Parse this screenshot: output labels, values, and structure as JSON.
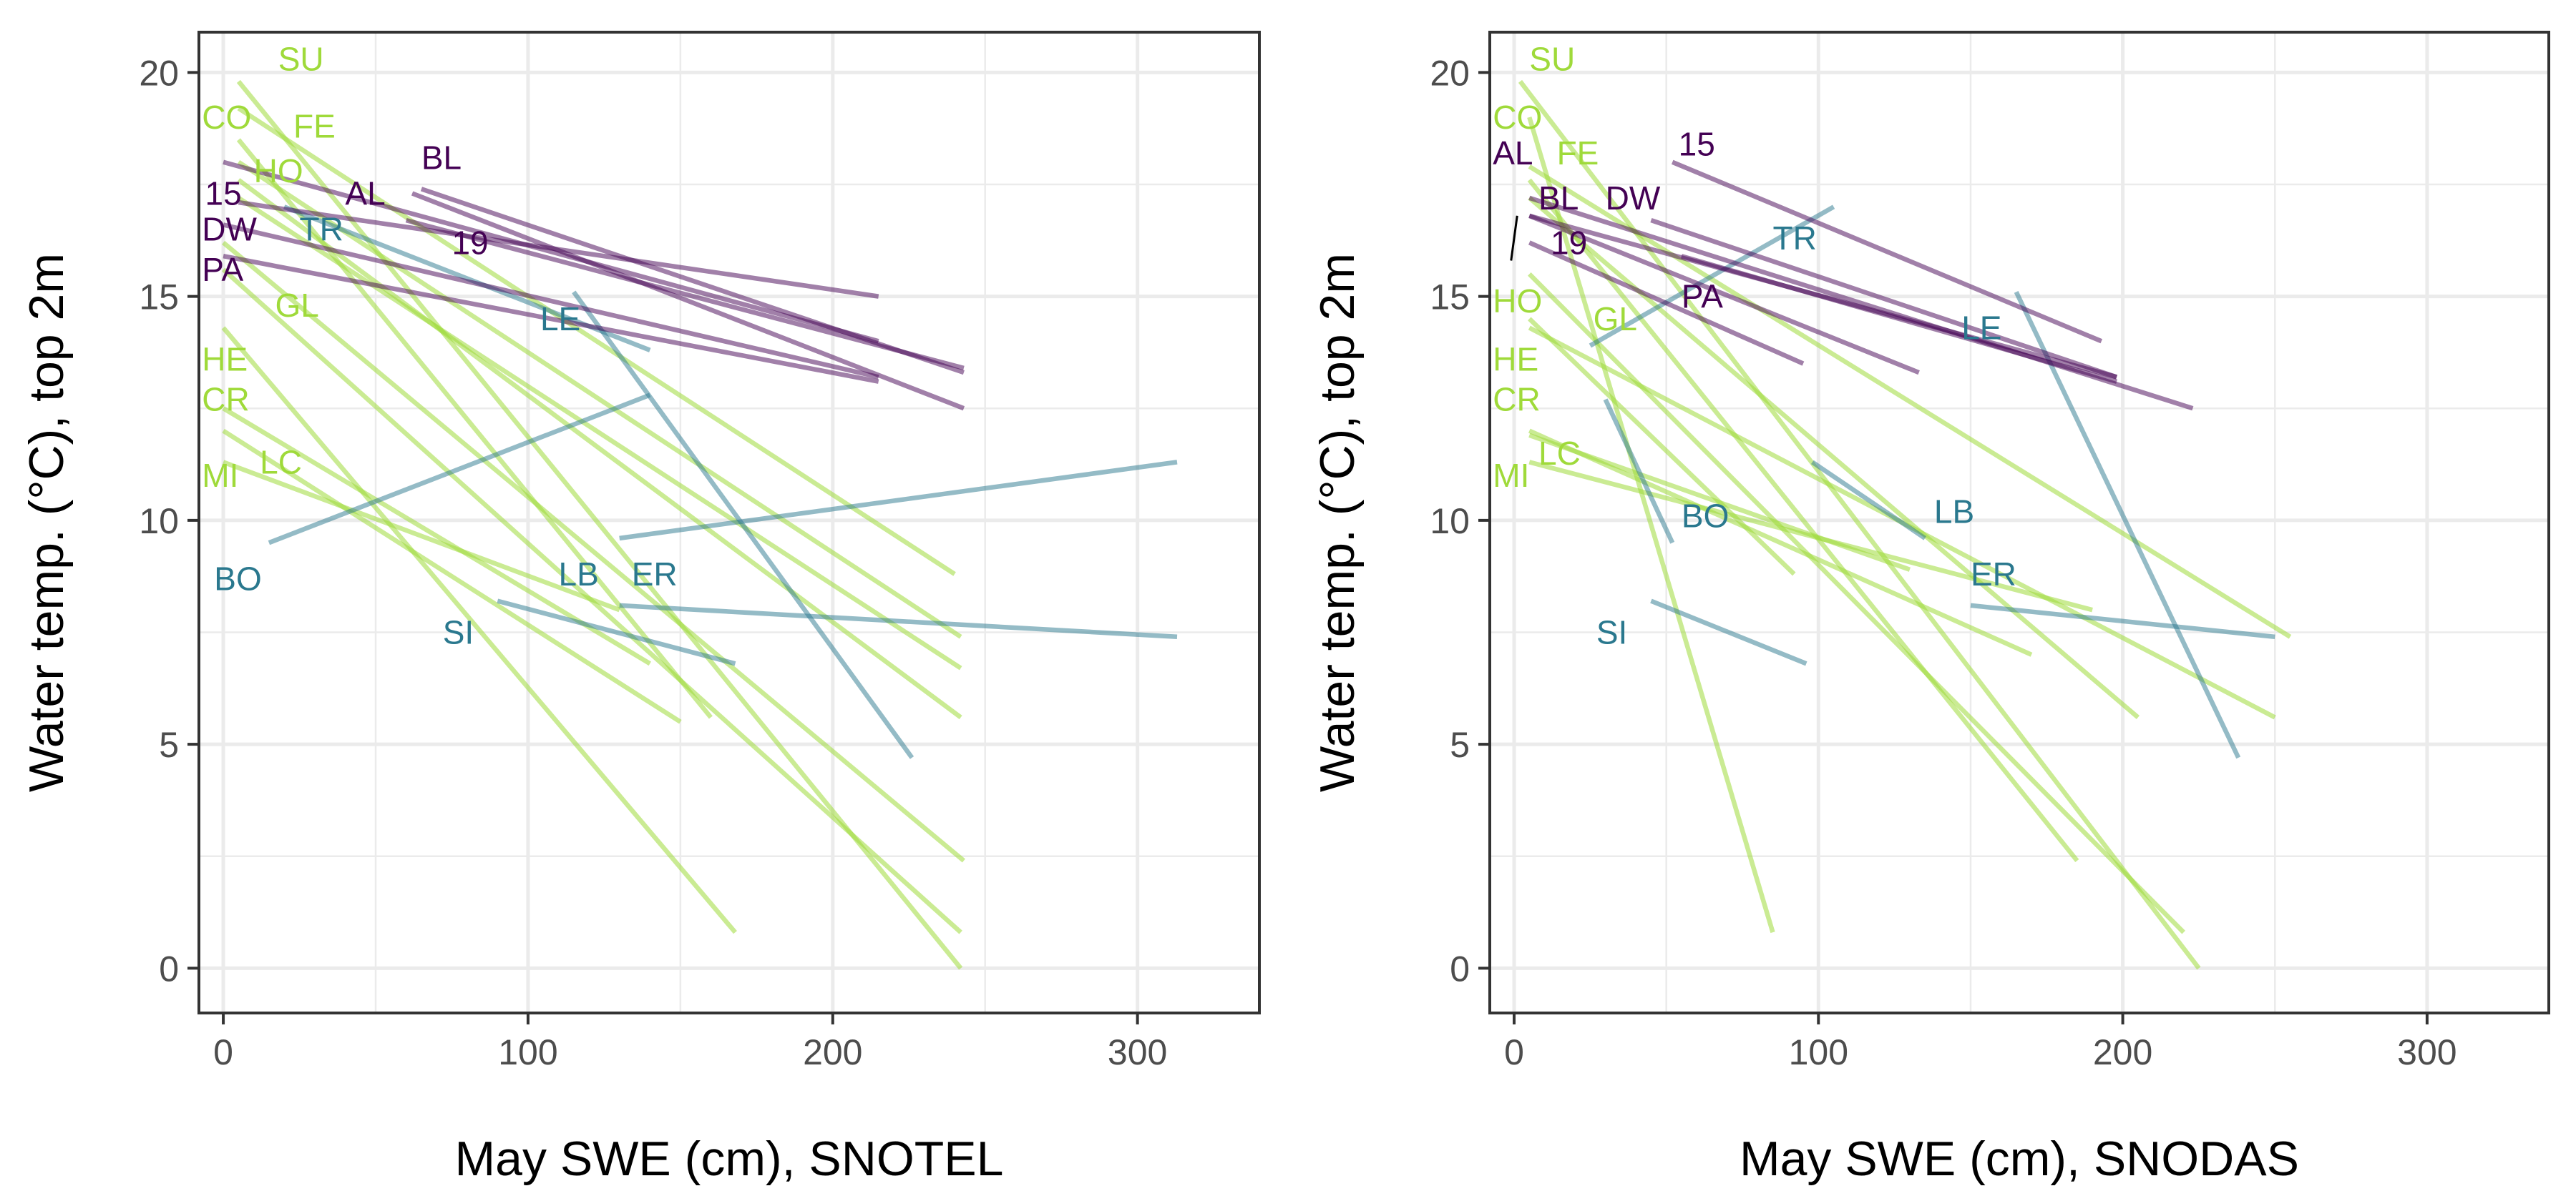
{
  "colors": {
    "purple": "#440154",
    "teal": "#2a788e",
    "green": "#9fda3a"
  },
  "chart_data": [
    {
      "type": "line",
      "xlabel": "May SWE (cm), SNOTEL",
      "ylabel": "Water temp. (°C), top 2m",
      "xlim": [
        -8,
        340
      ],
      "ylim": [
        -1,
        20.9
      ],
      "x_ticks": [
        0,
        100,
        200,
        300
      ],
      "y_ticks": [
        0,
        5,
        10,
        15,
        20
      ],
      "grid": true,
      "series": [
        {
          "group": "purple",
          "x": [
            65,
            243
          ],
          "y": [
            17.4,
            13.3
          ]
        },
        {
          "group": "purple",
          "x": [
            62,
            243
          ],
          "y": [
            17.3,
            12.5
          ]
        },
        {
          "group": "purple",
          "x": [
            0,
            215
          ],
          "y": [
            18.0,
            14.0
          ]
        },
        {
          "group": "purple",
          "x": [
            5,
            215
          ],
          "y": [
            17.1,
            15.0
          ]
        },
        {
          "group": "purple",
          "x": [
            0,
            215
          ],
          "y": [
            16.6,
            13.2
          ]
        },
        {
          "group": "purple",
          "x": [
            0,
            215
          ],
          "y": [
            15.9,
            13.1
          ]
        },
        {
          "group": "purple",
          "x": [
            60,
            243
          ],
          "y": [
            16.7,
            13.4
          ]
        },
        {
          "group": "teal",
          "x": [
            15,
            140
          ],
          "y": [
            9.5,
            12.8
          ]
        },
        {
          "group": "teal",
          "x": [
            20,
            140
          ],
          "y": [
            17.0,
            13.8
          ]
        },
        {
          "group": "teal",
          "x": [
            115,
            226
          ],
          "y": [
            15.1,
            4.7
          ]
        },
        {
          "group": "teal",
          "x": [
            130,
            313
          ],
          "y": [
            9.6,
            11.3
          ]
        },
        {
          "group": "teal",
          "x": [
            90,
            168
          ],
          "y": [
            8.2,
            6.8
          ]
        },
        {
          "group": "teal",
          "x": [
            130,
            313
          ],
          "y": [
            8.1,
            7.4
          ]
        },
        {
          "group": "green",
          "x": [
            5,
            242
          ],
          "y": [
            19.8,
            0.0
          ]
        },
        {
          "group": "green",
          "x": [
            5,
            240
          ],
          "y": [
            19.2,
            8.8
          ]
        },
        {
          "group": "green",
          "x": [
            5,
            242
          ],
          "y": [
            18.0,
            7.4
          ]
        },
        {
          "group": "green",
          "x": [
            5,
            242
          ],
          "y": [
            17.2,
            6.7
          ]
        },
        {
          "group": "green",
          "x": [
            5,
            160
          ],
          "y": [
            18.5,
            5.6
          ]
        },
        {
          "group": "green",
          "x": [
            5,
            242
          ],
          "y": [
            17.6,
            5.6
          ]
        },
        {
          "group": "green",
          "x": [
            0,
            243
          ],
          "y": [
            16.2,
            2.4
          ]
        },
        {
          "group": "green",
          "x": [
            0,
            242
          ],
          "y": [
            15.6,
            0.8
          ]
        },
        {
          "group": "green",
          "x": [
            0,
            168
          ],
          "y": [
            14.3,
            0.8
          ]
        },
        {
          "group": "green",
          "x": [
            0,
            140
          ],
          "y": [
            12.5,
            6.8
          ]
        },
        {
          "group": "green",
          "x": [
            0,
            130
          ],
          "y": [
            11.3,
            8.0
          ]
        },
        {
          "group": "green",
          "x": [
            0,
            150
          ],
          "y": [
            12.0,
            5.5
          ]
        }
      ],
      "labels": [
        {
          "text": "SU",
          "x": 18,
          "y": 20.3,
          "group": "green"
        },
        {
          "text": "CO",
          "x": -7,
          "y": 19.0,
          "group": "green"
        },
        {
          "text": "FE",
          "x": 23,
          "y": 18.8,
          "group": "green"
        },
        {
          "text": "BL",
          "x": 65,
          "y": 18.1,
          "group": "purple"
        },
        {
          "text": "HO",
          "x": 10,
          "y": 17.8,
          "group": "green"
        },
        {
          "text": "AL",
          "x": 40,
          "y": 17.3,
          "group": "purple"
        },
        {
          "text": "15",
          "x": -6,
          "y": 17.3,
          "group": "purple"
        },
        {
          "text": "DW",
          "x": -7,
          "y": 16.5,
          "group": "purple"
        },
        {
          "text": "TR",
          "x": 25,
          "y": 16.5,
          "group": "teal"
        },
        {
          "text": "19",
          "x": 75,
          "y": 16.2,
          "group": "purple"
        },
        {
          "text": "PA",
          "x": -7,
          "y": 15.6,
          "group": "purple"
        },
        {
          "text": "GL",
          "x": 17,
          "y": 14.8,
          "group": "green"
        },
        {
          "text": "LE",
          "x": 104,
          "y": 14.5,
          "group": "teal"
        },
        {
          "text": "HE",
          "x": -7,
          "y": 13.6,
          "group": "green"
        },
        {
          "text": "CR",
          "x": -7,
          "y": 12.7,
          "group": "green"
        },
        {
          "text": "LC",
          "x": 12,
          "y": 11.3,
          "group": "green"
        },
        {
          "text": "MI",
          "x": -7,
          "y": 11.0,
          "group": "green"
        },
        {
          "text": "BO",
          "x": -3,
          "y": 8.7,
          "group": "teal"
        },
        {
          "text": "LB",
          "x": 110,
          "y": 8.8,
          "group": "teal"
        },
        {
          "text": "ER",
          "x": 134,
          "y": 8.8,
          "group": "teal"
        },
        {
          "text": "SI",
          "x": 72,
          "y": 7.5,
          "group": "teal"
        }
      ]
    },
    {
      "type": "line",
      "xlabel": "May SWE (cm), SNODAS",
      "ylabel": "Water temp. (°C), top 2m",
      "xlim": [
        -8,
        340
      ],
      "ylim": [
        -1,
        20.9
      ],
      "x_ticks": [
        0,
        100,
        200,
        300
      ],
      "y_ticks": [
        0,
        5,
        10,
        15,
        20
      ],
      "grid": true,
      "series": [
        {
          "group": "purple",
          "x": [
            52,
            193
          ],
          "y": [
            18.0,
            14.0
          ]
        },
        {
          "group": "purple",
          "x": [
            5,
            223
          ],
          "y": [
            17.2,
            12.5
          ]
        },
        {
          "group": "purple",
          "x": [
            5,
            198
          ],
          "y": [
            16.8,
            13.2
          ]
        },
        {
          "group": "purple",
          "x": [
            5,
            133
          ],
          "y": [
            16.8,
            13.3
          ]
        },
        {
          "group": "purple",
          "x": [
            5,
            95
          ],
          "y": [
            16.2,
            13.5
          ]
        },
        {
          "group": "purple",
          "x": [
            55,
            198
          ],
          "y": [
            15.9,
            13.1
          ]
        },
        {
          "group": "purple",
          "x": [
            45,
            198
          ],
          "y": [
            16.7,
            13.2
          ]
        },
        {
          "group": "teal",
          "x": [
            25,
            105
          ],
          "y": [
            13.9,
            17.0
          ]
        },
        {
          "group": "teal",
          "x": [
            165,
            238
          ],
          "y": [
            15.1,
            4.7
          ]
        },
        {
          "group": "teal",
          "x": [
            30,
            52
          ],
          "y": [
            12.7,
            9.5
          ]
        },
        {
          "group": "teal",
          "x": [
            98,
            135
          ],
          "y": [
            11.3,
            9.6
          ]
        },
        {
          "group": "teal",
          "x": [
            45,
            96
          ],
          "y": [
            8.2,
            6.8
          ]
        },
        {
          "group": "teal",
          "x": [
            150,
            250
          ],
          "y": [
            8.1,
            7.4
          ]
        },
        {
          "group": "green",
          "x": [
            2,
            225
          ],
          "y": [
            19.8,
            0.0
          ]
        },
        {
          "group": "green",
          "x": [
            5,
            85
          ],
          "y": [
            19.0,
            0.8
          ]
        },
        {
          "group": "green",
          "x": [
            5,
            255
          ],
          "y": [
            17.9,
            7.4
          ]
        },
        {
          "group": "green",
          "x": [
            5,
            205
          ],
          "y": [
            17.2,
            5.6
          ]
        },
        {
          "group": "green",
          "x": [
            5,
            185
          ],
          "y": [
            17.6,
            2.4
          ]
        },
        {
          "group": "green",
          "x": [
            5,
            220
          ],
          "y": [
            15.5,
            0.8
          ]
        },
        {
          "group": "green",
          "x": [
            5,
            250
          ],
          "y": [
            14.3,
            5.6
          ]
        },
        {
          "group": "green",
          "x": [
            5,
            92
          ],
          "y": [
            14.5,
            8.8
          ]
        },
        {
          "group": "green",
          "x": [
            5,
            170
          ],
          "y": [
            12.0,
            7.0
          ]
        },
        {
          "group": "green",
          "x": [
            5,
            190
          ],
          "y": [
            11.3,
            8.0
          ]
        },
        {
          "group": "green",
          "x": [
            5,
            130
          ],
          "y": [
            11.9,
            8.9
          ]
        }
      ],
      "labels": [
        {
          "text": "SU",
          "x": 5,
          "y": 20.3,
          "group": "green"
        },
        {
          "text": "CO",
          "x": -7,
          "y": 19.0,
          "group": "green"
        },
        {
          "text": "15",
          "x": 54,
          "y": 18.4,
          "group": "purple"
        },
        {
          "text": "AL",
          "x": -7,
          "y": 18.2,
          "group": "purple"
        },
        {
          "text": "FE",
          "x": 14,
          "y": 18.2,
          "group": "green"
        },
        {
          "text": "BL",
          "x": 8,
          "y": 17.2,
          "group": "purple"
        },
        {
          "text": "DW",
          "x": 30,
          "y": 17.2,
          "group": "purple"
        },
        {
          "text": "19",
          "x": 12,
          "y": 16.2,
          "group": "purple"
        },
        {
          "text": "TR",
          "x": 85,
          "y": 16.3,
          "group": "teal"
        },
        {
          "text": "PA",
          "x": 55,
          "y": 15.0,
          "group": "purple"
        },
        {
          "text": "HO",
          "x": -7,
          "y": 14.9,
          "group": "green"
        },
        {
          "text": "GL",
          "x": 26,
          "y": 14.5,
          "group": "green"
        },
        {
          "text": "LE",
          "x": 147,
          "y": 14.3,
          "group": "teal"
        },
        {
          "text": "HE",
          "x": -7,
          "y": 13.6,
          "group": "green"
        },
        {
          "text": "CR",
          "x": -7,
          "y": 12.7,
          "group": "green"
        },
        {
          "text": "LC",
          "x": 8,
          "y": 11.5,
          "group": "green"
        },
        {
          "text": "MI",
          "x": -7,
          "y": 11.0,
          "group": "green"
        },
        {
          "text": "LB",
          "x": 138,
          "y": 10.2,
          "group": "teal"
        },
        {
          "text": "BO",
          "x": 55,
          "y": 10.1,
          "group": "teal"
        },
        {
          "text": "ER",
          "x": 150,
          "y": 8.8,
          "group": "teal"
        },
        {
          "text": "SI",
          "x": 27,
          "y": 7.5,
          "group": "teal"
        }
      ]
    }
  ]
}
